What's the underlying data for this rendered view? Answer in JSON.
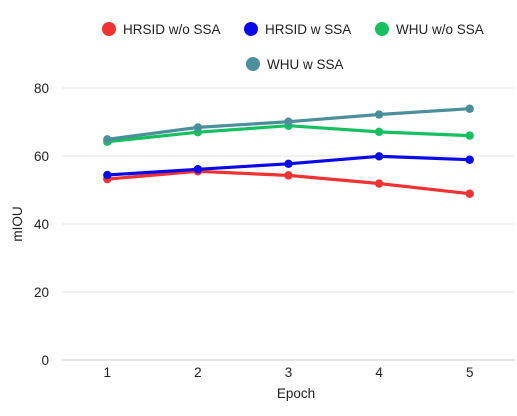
{
  "chart_data": {
    "type": "line",
    "title": "",
    "xlabel": "Epoch",
    "ylabel": "mIOU",
    "x": [
      1,
      2,
      3,
      4,
      5
    ],
    "ylim": [
      0,
      80
    ],
    "yticks": [
      0,
      20,
      40,
      60,
      80
    ],
    "grid": true,
    "legend_position": "top",
    "series": [
      {
        "name": "HRSID w/o SSA",
        "color": "#f03232",
        "values": [
          53.2,
          55.5,
          54.3,
          51.9,
          48.9
        ]
      },
      {
        "name": "HRSID w SSA",
        "color": "#0a0ae8",
        "values": [
          54.4,
          56.1,
          57.7,
          59.9,
          58.9
        ]
      },
      {
        "name": "WHU w/o SSA",
        "color": "#16c060",
        "values": [
          64.2,
          67.0,
          68.9,
          67.1,
          66.0
        ]
      },
      {
        "name": "WHU w SSA",
        "color": "#4b8f9a",
        "values": [
          64.9,
          68.4,
          70.1,
          72.2,
          73.9
        ]
      }
    ]
  }
}
